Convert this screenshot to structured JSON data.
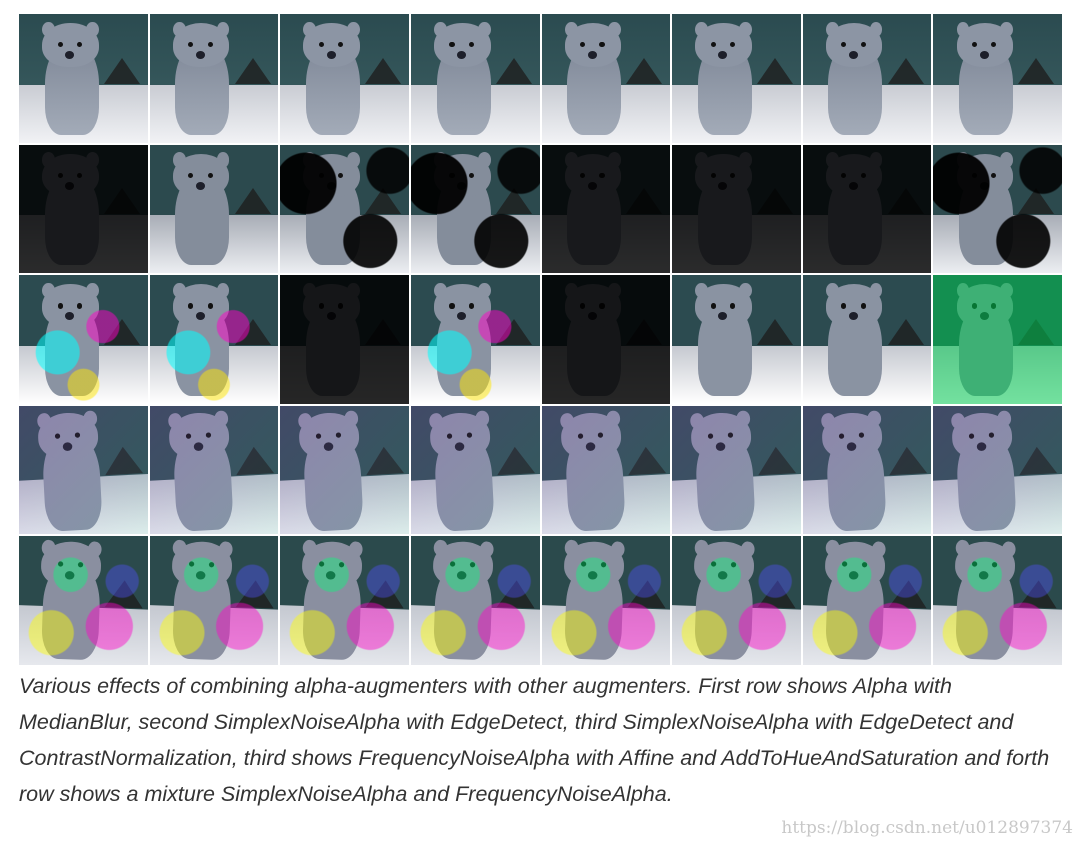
{
  "figure": {
    "rows": 5,
    "columns": 8,
    "subject_icon": "quokka-photo"
  },
  "caption": "Various effects of combining alpha-augmenters with other augmenters. First row shows Alpha with MedianBlur, second SimplexNoiseAlpha with EdgeDetect, third SimplexNoiseAlpha with EdgeDetect and ContrastNormalization, third shows FrequencyNoiseAlpha with Affine and AddToHueAndSaturation and forth row shows a mixture SimplexNoiseAlpha and FrequencyNoiseAlpha.",
  "watermark": "https://blog.csdn.net/u012897374"
}
